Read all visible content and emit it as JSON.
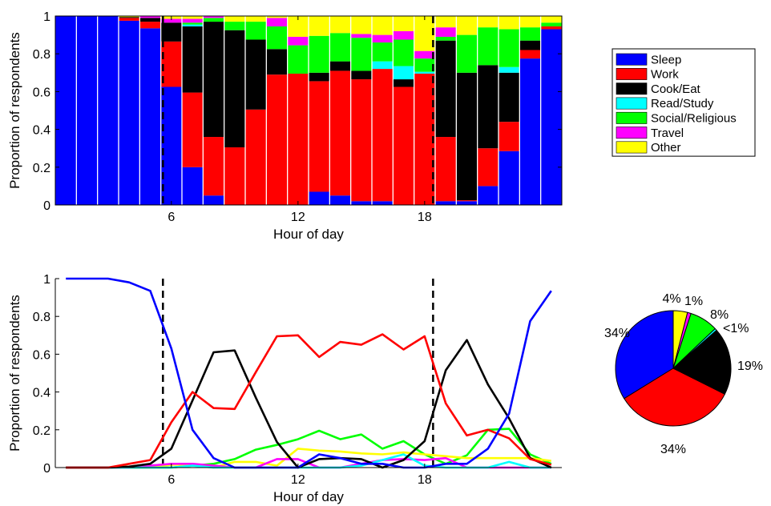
{
  "chart_data": [
    {
      "type": "bar",
      "stacked": true,
      "xlabel": "Hour of day",
      "ylabel": "Proportion of respondents",
      "ylim": [
        0,
        1
      ],
      "yticks": [
        0,
        0.2,
        0.4,
        0.6,
        0.8,
        1
      ],
      "ytick_labels": [
        "0",
        "0.2",
        "0.4",
        "0.6",
        "0.8",
        "1"
      ],
      "xticks": [
        6,
        12,
        18
      ],
      "xtick_labels": [
        "6",
        "12",
        "18"
      ],
      "xlim": [
        0.5,
        24.5
      ],
      "dashed_lines_x": [
        5.6,
        18.4
      ],
      "grid": false,
      "legend_placement": "right",
      "categories": [
        1,
        2,
        3,
        4,
        5,
        6,
        7,
        8,
        9,
        10,
        11,
        12,
        13,
        14,
        15,
        16,
        17,
        18,
        19,
        20,
        21,
        22,
        23,
        24
      ],
      "series": [
        {
          "name": "Sleep",
          "color": "#0000ff",
          "values": [
            1.0,
            1.0,
            1.0,
            0.975,
            0.935,
            0.625,
            0.2,
            0.05,
            0.0,
            0.0,
            0.0,
            0.0,
            0.07,
            0.05,
            0.02,
            0.02,
            0.0,
            0.0,
            0.02,
            0.02,
            0.1,
            0.285,
            0.775,
            0.93
          ]
        },
        {
          "name": "Work",
          "color": "#ff0000",
          "values": [
            0.0,
            0.0,
            0.0,
            0.015,
            0.035,
            0.24,
            0.395,
            0.31,
            0.305,
            0.505,
            0.69,
            0.695,
            0.585,
            0.66,
            0.645,
            0.7,
            0.625,
            0.695,
            0.34,
            0.005,
            0.2,
            0.155,
            0.045,
            0.015
          ]
        },
        {
          "name": "Cook/Eat",
          "color": "#000000",
          "values": [
            0.0,
            0.0,
            0.0,
            0.005,
            0.02,
            0.1,
            0.35,
            0.61,
            0.62,
            0.37,
            0.135,
            0.0,
            0.045,
            0.05,
            0.045,
            0.0,
            0.04,
            0.0,
            0.51,
            0.675,
            0.44,
            0.26,
            0.05,
            0.0
          ]
        },
        {
          "name": "Read/Study",
          "color": "#00ffff",
          "values": [
            0.0,
            0.0,
            0.0,
            0.0,
            0.0,
            0.0,
            0.01,
            0.0,
            0.0,
            0.0,
            0.0,
            0.0,
            0.0,
            0.0,
            0.0,
            0.04,
            0.07,
            0.01,
            0.0,
            0.0,
            0.0,
            0.03,
            0.0,
            0.0
          ]
        },
        {
          "name": "Social/Religious",
          "color": "#00ff00",
          "values": [
            0.0,
            0.0,
            0.0,
            0.0,
            0.0,
            0.0,
            0.01,
            0.02,
            0.045,
            0.095,
            0.12,
            0.15,
            0.195,
            0.15,
            0.175,
            0.1,
            0.14,
            0.07,
            0.02,
            0.2,
            0.2,
            0.2,
            0.07,
            0.02
          ]
        },
        {
          "name": "Travel",
          "color": "#ff00ff",
          "values": [
            0.0,
            0.0,
            0.0,
            0.0,
            0.01,
            0.02,
            0.02,
            0.01,
            0.0,
            0.0,
            0.045,
            0.045,
            0.0,
            0.0,
            0.02,
            0.04,
            0.045,
            0.04,
            0.05,
            0.0,
            0.0,
            0.0,
            0.0,
            0.0
          ]
        },
        {
          "name": "Other",
          "color": "#ffff00",
          "values": [
            0.0,
            0.0,
            0.0,
            0.005,
            0.0,
            0.015,
            0.015,
            0.0,
            0.03,
            0.03,
            0.01,
            0.11,
            0.105,
            0.09,
            0.095,
            0.1,
            0.08,
            0.185,
            0.06,
            0.1,
            0.06,
            0.07,
            0.06,
            0.035
          ]
        }
      ]
    },
    {
      "type": "line",
      "xlabel": "Hour of day",
      "ylabel": "Proportion of respondents",
      "ylim": [
        0,
        1
      ],
      "yticks": [
        0,
        0.2,
        0.4,
        0.6,
        0.8,
        1
      ],
      "ytick_labels": [
        "0",
        "0.2",
        "0.4",
        "0.6",
        "0.8",
        "1"
      ],
      "xticks": [
        6,
        12,
        18
      ],
      "xtick_labels": [
        "6",
        "12",
        "18"
      ],
      "xlim": [
        0.5,
        24.5
      ],
      "dashed_lines_x": [
        5.6,
        18.4
      ],
      "grid": false,
      "x": [
        1,
        2,
        3,
        4,
        5,
        6,
        7,
        8,
        9,
        10,
        11,
        12,
        13,
        14,
        15,
        16,
        17,
        18,
        19,
        20,
        21,
        22,
        23,
        24
      ],
      "series": [
        {
          "name": "Sleep",
          "color": "#0000ff",
          "values": [
            1.0,
            1.0,
            1.0,
            0.98,
            0.935,
            0.63,
            0.2,
            0.05,
            0.0,
            0.0,
            0.0,
            0.0,
            0.07,
            0.05,
            0.02,
            0.02,
            0.0,
            0.0,
            0.02,
            0.02,
            0.1,
            0.285,
            0.775,
            0.935
          ]
        },
        {
          "name": "Work",
          "color": "#ff0000",
          "values": [
            0.0,
            0.0,
            0.0,
            0.02,
            0.04,
            0.24,
            0.4,
            0.315,
            0.31,
            0.505,
            0.695,
            0.7,
            0.585,
            0.665,
            0.65,
            0.705,
            0.625,
            0.695,
            0.34,
            0.17,
            0.2,
            0.155,
            0.045,
            0.015
          ]
        },
        {
          "name": "Cook/Eat",
          "color": "#000000",
          "values": [
            0.0,
            0.0,
            0.0,
            0.005,
            0.02,
            0.1,
            0.355,
            0.61,
            0.62,
            0.37,
            0.135,
            0.0,
            0.045,
            0.05,
            0.045,
            0.0,
            0.04,
            0.14,
            0.515,
            0.675,
            0.44,
            0.26,
            0.05,
            0.0
          ]
        },
        {
          "name": "Read/Study",
          "color": "#00ffff",
          "values": [
            0.0,
            0.0,
            0.0,
            0.0,
            0.0,
            0.0,
            0.01,
            0.0,
            0.0,
            0.0,
            0.0,
            0.0,
            0.0,
            0.0,
            0.01,
            0.04,
            0.07,
            0.01,
            0.0,
            0.0,
            0.0,
            0.03,
            0.0,
            0.0
          ]
        },
        {
          "name": "Social/Religious",
          "color": "#00ff00",
          "values": [
            0.0,
            0.0,
            0.0,
            0.0,
            0.0,
            0.0,
            0.01,
            0.02,
            0.045,
            0.095,
            0.12,
            0.15,
            0.195,
            0.15,
            0.175,
            0.1,
            0.14,
            0.07,
            0.02,
            0.065,
            0.2,
            0.205,
            0.07,
            0.02
          ]
        },
        {
          "name": "Travel",
          "color": "#ff00ff",
          "values": [
            0.0,
            0.0,
            0.0,
            0.0,
            0.01,
            0.02,
            0.02,
            0.01,
            0.0,
            0.0,
            0.045,
            0.045,
            0.0,
            0.0,
            0.02,
            0.04,
            0.045,
            0.04,
            0.05,
            0.0,
            0.0,
            0.0,
            0.0,
            0.0
          ]
        },
        {
          "name": "Other",
          "color": "#ffff00",
          "values": [
            0.0,
            0.0,
            0.0,
            0.005,
            0.0,
            0.015,
            0.015,
            0.0,
            0.03,
            0.03,
            0.01,
            0.1,
            0.09,
            0.085,
            0.075,
            0.07,
            0.08,
            0.07,
            0.06,
            0.05,
            0.05,
            0.05,
            0.05,
            0.035
          ]
        }
      ]
    },
    {
      "type": "pie",
      "slices": [
        {
          "name": "Sleep",
          "color": "#0000ff",
          "value": 34,
          "label": "34%"
        },
        {
          "name": "Work",
          "color": "#ff0000",
          "value": 34,
          "label": "34%"
        },
        {
          "name": "Cook/Eat",
          "color": "#000000",
          "value": 19,
          "label": "19%"
        },
        {
          "name": "Read/Study",
          "color": "#00ffff",
          "value": 0.6,
          "label": "<1%"
        },
        {
          "name": "Social/Religious",
          "color": "#00ff00",
          "value": 8,
          "label": "8%"
        },
        {
          "name": "Travel",
          "color": "#ff00ff",
          "value": 1,
          "label": "1%"
        },
        {
          "name": "Other",
          "color": "#ffff00",
          "value": 4,
          "label": "4%"
        }
      ]
    }
  ]
}
